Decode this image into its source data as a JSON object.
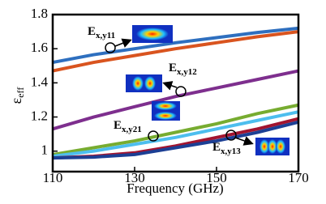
{
  "chart_data": {
    "type": "line",
    "x": [
      110,
      120,
      130,
      140,
      150,
      160,
      170
    ],
    "xlim": [
      110,
      170
    ],
    "xticks": [
      110,
      130,
      150,
      170
    ],
    "ylim": [
      0.88,
      1.8
    ],
    "yticks": [
      1,
      1.2,
      1.4,
      1.6,
      1.8
    ],
    "xlabel": "Frequency (GHz)",
    "ylabel": {
      "text": "ε",
      "sub": "eff"
    },
    "series": [
      {
        "color": "#2e6fbf",
        "values": [
          1.52,
          1.565,
          1.6,
          1.635,
          1.665,
          1.695,
          1.72
        ]
      },
      {
        "color": "#d9541f",
        "values": [
          1.47,
          1.52,
          1.56,
          1.6,
          1.635,
          1.67,
          1.7
        ]
      },
      {
        "color": "#7e2f8e",
        "values": [
          1.13,
          1.2,
          1.26,
          1.32,
          1.37,
          1.42,
          1.47
        ]
      },
      {
        "color": "#77ac30",
        "values": [
          0.98,
          1.02,
          1.06,
          1.11,
          1.16,
          1.22,
          1.27
        ]
      },
      {
        "color": "#4dbeee",
        "values": [
          0.97,
          1.0,
          1.04,
          1.08,
          1.13,
          1.18,
          1.23
        ]
      },
      {
        "color": "#a2142f",
        "values": [
          0.96,
          0.97,
          0.99,
          1.03,
          1.08,
          1.13,
          1.19
        ]
      },
      {
        "color": "#1c3f94",
        "values": [
          0.96,
          0.965,
          0.98,
          1.02,
          1.06,
          1.11,
          1.17
        ]
      }
    ],
    "annotations": [
      {
        "text": "E",
        "sub": "x,y11"
      },
      {
        "text": "E",
        "sub": "x,y12"
      },
      {
        "text": "E",
        "sub": "x,y21"
      },
      {
        "text": "E",
        "sub": "x,y13"
      }
    ]
  }
}
